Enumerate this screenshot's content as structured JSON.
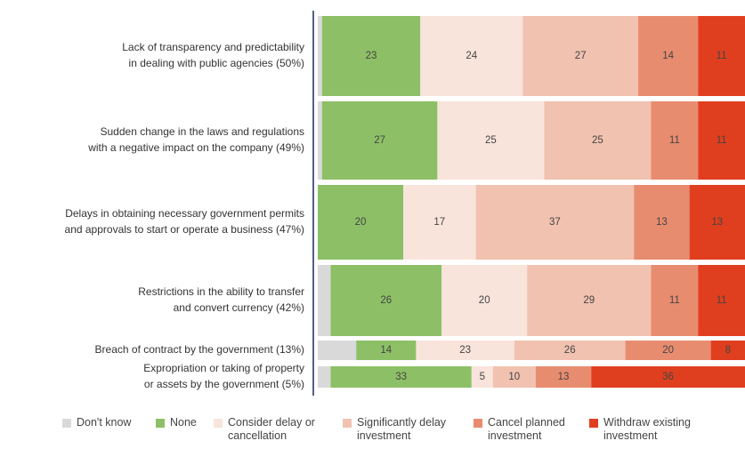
{
  "chart_data": {
    "type": "bar",
    "orientation": "horizontal",
    "stacked": true,
    "categories": [
      [
        "Lack of transparency and predictability",
        "in dealing with public agencies (50%)"
      ],
      [
        "Sudden change in the laws and regulations",
        "with a negative impact on the company (49%)"
      ],
      [
        "Delays in obtaining necessary government permits",
        "and approvals to start or operate a business (47%)"
      ],
      [
        "Restrictions in the ability to transfer",
        "and convert currency (42%)"
      ],
      [
        "Breach of contract by the government (13%)"
      ],
      [
        "Expropriation or taking of property",
        "or assets by the government (5%)"
      ]
    ],
    "xlim": [
      0,
      100
    ],
    "series": [
      {
        "name": "Don't know",
        "color": "#d9d9d9",
        "values": [
          1,
          1,
          0,
          3,
          9,
          3
        ]
      },
      {
        "name": "None",
        "color": "#8dc066",
        "values": [
          23,
          27,
          20,
          26,
          14,
          33
        ]
      },
      {
        "name": "Consider delay or cancellation",
        "color": "#f8e4db",
        "values": [
          24,
          25,
          17,
          20,
          23,
          5
        ]
      },
      {
        "name": "Significantly delay investment",
        "color": "#f1c2b0",
        "values": [
          27,
          25,
          37,
          29,
          26,
          10
        ]
      },
      {
        "name": "Cancel planned investment",
        "color": "#e88c70",
        "values": [
          14,
          11,
          13,
          11,
          20,
          13
        ]
      },
      {
        "name": "Withdraw existing investment",
        "color": "#e03f1f",
        "values": [
          11,
          11,
          13,
          11,
          8,
          36
        ]
      }
    ]
  }
}
